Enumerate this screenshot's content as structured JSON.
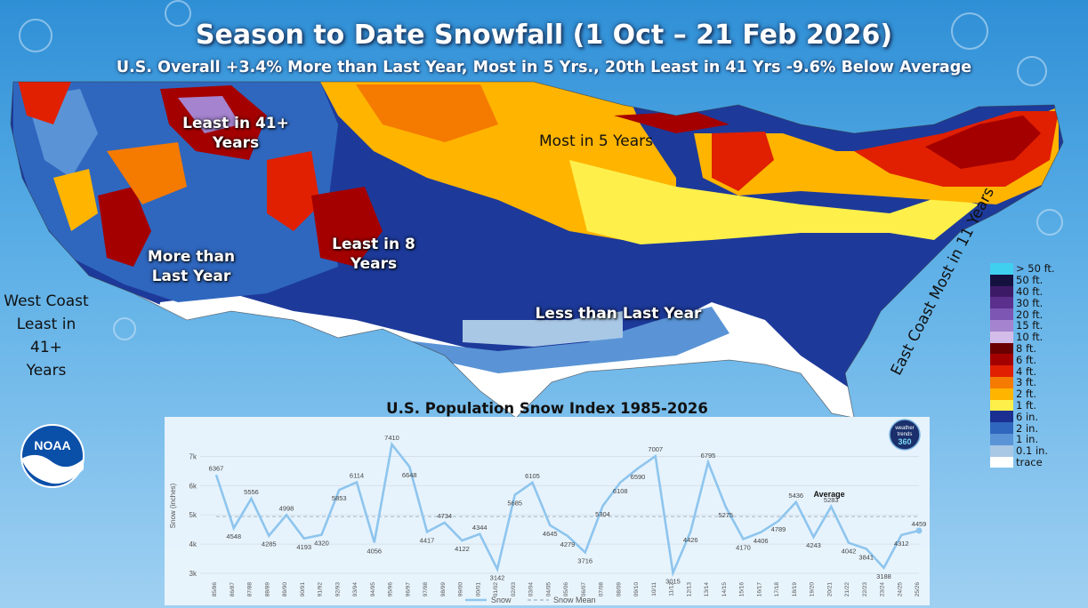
{
  "title": "Season to Date Snowfall (1 Oct – 21 Feb 2026)",
  "subtitle": "U.S. Overall +3.4% More than Last Year, Most in 5 Yrs., 20th Least in 41 Yrs -9.6% Below Average",
  "annotations": {
    "least_41_rockies": [
      "Least in 41+",
      "Years"
    ],
    "most_5": "Most in 5 Years",
    "more_last_year": [
      "More than",
      "Last Year"
    ],
    "least_8": [
      "Least in 8",
      "Years"
    ],
    "less_last_year": "Less than Last Year",
    "west_coast": [
      "West Coast",
      "Least in 41+",
      "Years"
    ],
    "east_coast": "East Coast Most in 11 Years"
  },
  "logos": {
    "noaa": "NOAA",
    "weathertrends": [
      "weather",
      "trends",
      "360"
    ]
  },
  "legend": [
    {
      "label": "> 50 ft.",
      "color": "#3fd0f0"
    },
    {
      "label": "50 ft.",
      "color": "#15113f"
    },
    {
      "label": "40 ft.",
      "color": "#3d1a66"
    },
    {
      "label": "30 ft.",
      "color": "#5b2f8c"
    },
    {
      "label": "20 ft.",
      "color": "#7d55b2"
    },
    {
      "label": "15 ft.",
      "color": "#a583cf"
    },
    {
      "label": "10 ft.",
      "color": "#d4bde8"
    },
    {
      "label": "8 ft.",
      "color": "#6a0000"
    },
    {
      "label": "6 ft.",
      "color": "#a50000"
    },
    {
      "label": "4 ft.",
      "color": "#e02000"
    },
    {
      "label": "3 ft.",
      "color": "#f57a00"
    },
    {
      "label": "2 ft.",
      "color": "#ffb400"
    },
    {
      "label": "1 ft.",
      "color": "#ffef4a"
    },
    {
      "label": "6 in.",
      "color": "#1a2f8f"
    },
    {
      "label": "2 in.",
      "color": "#2f67bf"
    },
    {
      "label": "1 in.",
      "color": "#5a94d6"
    },
    {
      "label": "0.1 in.",
      "color": "#a9c8e6"
    },
    {
      "label": "trace",
      "color": "#ffffff"
    }
  ],
  "chart_data": {
    "type": "line",
    "title": "U.S. Population Snow Index 1985-2026",
    "ylabel": "Snow (inches)",
    "ylim": [
      3000,
      7500
    ],
    "yticks": [
      "3k",
      "4k",
      "5k",
      "6k",
      "7k"
    ],
    "categories": [
      "85/86",
      "86/87",
      "87/88",
      "88/89",
      "89/90",
      "90/91",
      "91/92",
      "92/93",
      "93/94",
      "94/95",
      "95/96",
      "96/97",
      "97/98",
      "98/99",
      "99/00",
      "00/01",
      "01/02",
      "02/03",
      "03/04",
      "04/05",
      "05/06",
      "06/07",
      "07/08",
      "08/09",
      "09/10",
      "10/11",
      "11/12",
      "12/13",
      "13/14",
      "14/15",
      "15/16",
      "16/17",
      "17/18",
      "18/19",
      "19/20",
      "20/21",
      "21/22",
      "22/23",
      "23/24",
      "24/25",
      "25/26"
    ],
    "series": [
      {
        "name": "Snow",
        "color": "#8ec5ee",
        "values": [
          6367,
          4548,
          5556,
          4285,
          4998,
          4193,
          4320,
          5853,
          6114,
          4056,
          7410,
          6648,
          4417,
          4734,
          4122,
          4344,
          3142,
          5685,
          6105,
          4645,
          4279,
          3716,
          5304,
          6108,
          6590,
          7007,
          3015,
          4426,
          6795,
          5275,
          4170,
          4406,
          4789,
          5436,
          4243,
          5283,
          4042,
          3841,
          3188,
          4312,
          4459
        ]
      },
      {
        "name": "Snow Mean",
        "color": "#b9cbd8",
        "values_mean": 4940
      }
    ],
    "annotations": [
      "Average"
    ],
    "legend_position": "bottom"
  }
}
